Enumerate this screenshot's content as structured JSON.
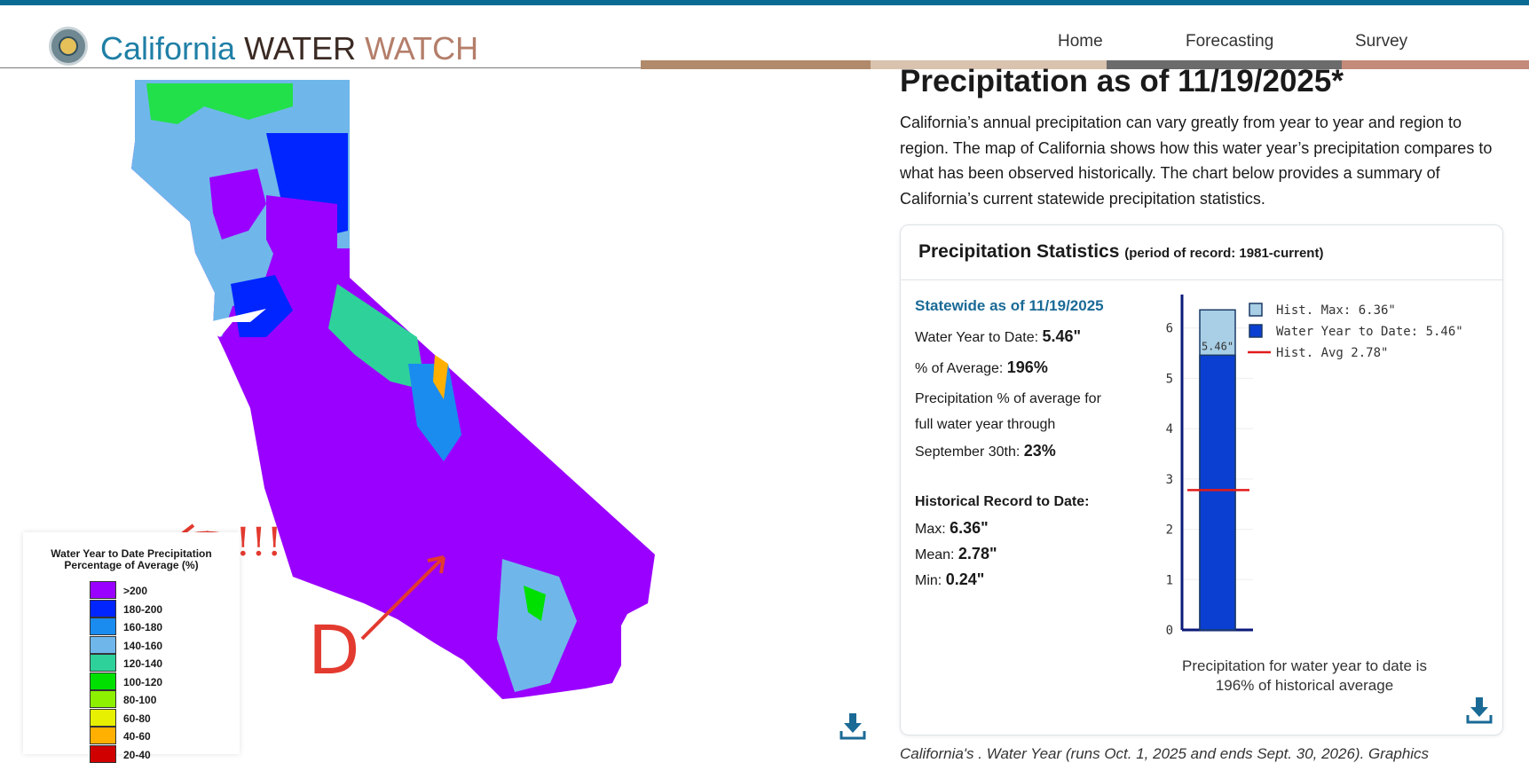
{
  "header": {
    "brand_1": "California",
    "brand_2": "WATER",
    "brand_3": "WATCH",
    "nav": [
      "Home",
      "Forecasting",
      "Survey"
    ]
  },
  "map": {
    "legend_title_1": "Water Year to Date Precipitation",
    "legend_title_2": "Percentage of Average (%)",
    "legend": [
      {
        "label": ">200",
        "color": "#9a00ff"
      },
      {
        "label": "180-200",
        "color": "#0025ff"
      },
      {
        "label": "160-180",
        "color": "#1a8cf0"
      },
      {
        "label": "140-160",
        "color": "#6fb7ea"
      },
      {
        "label": "120-140",
        "color": "#2fd19a"
      },
      {
        "label": "100-120",
        "color": "#00e000"
      },
      {
        "label": "80-100",
        "color": "#8cf000"
      },
      {
        "label": "60-80",
        "color": "#e6f000"
      },
      {
        "label": "40-60",
        "color": "#ffb000"
      },
      {
        "label": "20-40",
        "color": "#d00000"
      }
    ],
    "annotation_exclaim": "!!!",
    "annotation_letter": "D"
  },
  "main": {
    "title": "Precipitation as of 11/19/2025*",
    "intro": "California’s annual precipitation can vary greatly from year to year and region to region. The map of California shows how this water year’s precipitation compares to what has been observed historically. The chart below provides a summary of California’s current statewide precipitation statistics.",
    "card_title": "Precipitation Statistics",
    "card_subtitle": "(period of record: 1981-current)",
    "stats_head": "Statewide as of  11/19/2025",
    "wytd_label": "Water Year to Date:",
    "wytd_value": "5.46\"",
    "pct_label": "% of Average:",
    "pct_value": "196%",
    "full_1": "Precipitation % of average for",
    "full_2": "full water year through",
    "full_3_label": "September 30th:",
    "full_3_value": "23%",
    "hist_head": "Historical Record to Date:",
    "max_label": "Max:",
    "max_value": "6.36\"",
    "mean_label": "Mean:",
    "mean_value": "2.78\"",
    "min_label": "Min:",
    "min_value": "0.24\"",
    "caption_1": "Precipitation for water year to date is",
    "caption_2": "196% of historical average"
  },
  "chart_data": {
    "type": "bar",
    "ylim": [
      0,
      6.7
    ],
    "yticks": [
      "0",
      "1",
      "2",
      "3",
      "4",
      "5",
      "6"
    ],
    "hist_max": 6.36,
    "water_year_to_date": 5.46,
    "hist_avg": 2.78,
    "bar_label": "5.46\"",
    "legend": [
      "Hist. Max: 6.36\"",
      "Water Year to Date: 5.46\"",
      "Hist. Avg 2.78\""
    ],
    "colors": {
      "max": "#a9cfe6",
      "wytd": "#0a3fd1",
      "avg": "#e21b1b",
      "axis": "#0b1a7a"
    }
  },
  "footer_text": "California's . Water Year (runs Oct. 1, 2025 and ends Sept. 30, 2026). Graphics"
}
